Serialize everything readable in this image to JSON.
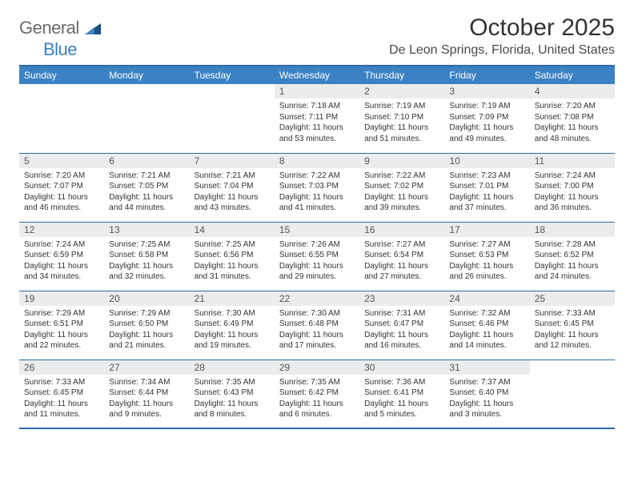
{
  "logo": {
    "text1": "General",
    "text2": "Blue"
  },
  "title": "October 2025",
  "location": "De Leon Springs, Florida, United States",
  "colors": {
    "header_bg": "#3b82c4",
    "border": "#2d6aa8",
    "daynum_bg": "#ececec",
    "logo_gray": "#6b6b6b",
    "logo_blue": "#3b7fc4"
  },
  "weekdays": [
    "Sunday",
    "Monday",
    "Tuesday",
    "Wednesday",
    "Thursday",
    "Friday",
    "Saturday"
  ],
  "weeks": [
    [
      {
        "n": "",
        "sr": "",
        "ss": "",
        "dl": ""
      },
      {
        "n": "",
        "sr": "",
        "ss": "",
        "dl": ""
      },
      {
        "n": "",
        "sr": "",
        "ss": "",
        "dl": ""
      },
      {
        "n": "1",
        "sr": "Sunrise: 7:18 AM",
        "ss": "Sunset: 7:11 PM",
        "dl": "Daylight: 11 hours and 53 minutes."
      },
      {
        "n": "2",
        "sr": "Sunrise: 7:19 AM",
        "ss": "Sunset: 7:10 PM",
        "dl": "Daylight: 11 hours and 51 minutes."
      },
      {
        "n": "3",
        "sr": "Sunrise: 7:19 AM",
        "ss": "Sunset: 7:09 PM",
        "dl": "Daylight: 11 hours and 49 minutes."
      },
      {
        "n": "4",
        "sr": "Sunrise: 7:20 AM",
        "ss": "Sunset: 7:08 PM",
        "dl": "Daylight: 11 hours and 48 minutes."
      }
    ],
    [
      {
        "n": "5",
        "sr": "Sunrise: 7:20 AM",
        "ss": "Sunset: 7:07 PM",
        "dl": "Daylight: 11 hours and 46 minutes."
      },
      {
        "n": "6",
        "sr": "Sunrise: 7:21 AM",
        "ss": "Sunset: 7:05 PM",
        "dl": "Daylight: 11 hours and 44 minutes."
      },
      {
        "n": "7",
        "sr": "Sunrise: 7:21 AM",
        "ss": "Sunset: 7:04 PM",
        "dl": "Daylight: 11 hours and 43 minutes."
      },
      {
        "n": "8",
        "sr": "Sunrise: 7:22 AM",
        "ss": "Sunset: 7:03 PM",
        "dl": "Daylight: 11 hours and 41 minutes."
      },
      {
        "n": "9",
        "sr": "Sunrise: 7:22 AM",
        "ss": "Sunset: 7:02 PM",
        "dl": "Daylight: 11 hours and 39 minutes."
      },
      {
        "n": "10",
        "sr": "Sunrise: 7:23 AM",
        "ss": "Sunset: 7:01 PM",
        "dl": "Daylight: 11 hours and 37 minutes."
      },
      {
        "n": "11",
        "sr": "Sunrise: 7:24 AM",
        "ss": "Sunset: 7:00 PM",
        "dl": "Daylight: 11 hours and 36 minutes."
      }
    ],
    [
      {
        "n": "12",
        "sr": "Sunrise: 7:24 AM",
        "ss": "Sunset: 6:59 PM",
        "dl": "Daylight: 11 hours and 34 minutes."
      },
      {
        "n": "13",
        "sr": "Sunrise: 7:25 AM",
        "ss": "Sunset: 6:58 PM",
        "dl": "Daylight: 11 hours and 32 minutes."
      },
      {
        "n": "14",
        "sr": "Sunrise: 7:25 AM",
        "ss": "Sunset: 6:56 PM",
        "dl": "Daylight: 11 hours and 31 minutes."
      },
      {
        "n": "15",
        "sr": "Sunrise: 7:26 AM",
        "ss": "Sunset: 6:55 PM",
        "dl": "Daylight: 11 hours and 29 minutes."
      },
      {
        "n": "16",
        "sr": "Sunrise: 7:27 AM",
        "ss": "Sunset: 6:54 PM",
        "dl": "Daylight: 11 hours and 27 minutes."
      },
      {
        "n": "17",
        "sr": "Sunrise: 7:27 AM",
        "ss": "Sunset: 6:53 PM",
        "dl": "Daylight: 11 hours and 26 minutes."
      },
      {
        "n": "18",
        "sr": "Sunrise: 7:28 AM",
        "ss": "Sunset: 6:52 PM",
        "dl": "Daylight: 11 hours and 24 minutes."
      }
    ],
    [
      {
        "n": "19",
        "sr": "Sunrise: 7:29 AM",
        "ss": "Sunset: 6:51 PM",
        "dl": "Daylight: 11 hours and 22 minutes."
      },
      {
        "n": "20",
        "sr": "Sunrise: 7:29 AM",
        "ss": "Sunset: 6:50 PM",
        "dl": "Daylight: 11 hours and 21 minutes."
      },
      {
        "n": "21",
        "sr": "Sunrise: 7:30 AM",
        "ss": "Sunset: 6:49 PM",
        "dl": "Daylight: 11 hours and 19 minutes."
      },
      {
        "n": "22",
        "sr": "Sunrise: 7:30 AM",
        "ss": "Sunset: 6:48 PM",
        "dl": "Daylight: 11 hours and 17 minutes."
      },
      {
        "n": "23",
        "sr": "Sunrise: 7:31 AM",
        "ss": "Sunset: 6:47 PM",
        "dl": "Daylight: 11 hours and 16 minutes."
      },
      {
        "n": "24",
        "sr": "Sunrise: 7:32 AM",
        "ss": "Sunset: 6:46 PM",
        "dl": "Daylight: 11 hours and 14 minutes."
      },
      {
        "n": "25",
        "sr": "Sunrise: 7:33 AM",
        "ss": "Sunset: 6:45 PM",
        "dl": "Daylight: 11 hours and 12 minutes."
      }
    ],
    [
      {
        "n": "26",
        "sr": "Sunrise: 7:33 AM",
        "ss": "Sunset: 6:45 PM",
        "dl": "Daylight: 11 hours and 11 minutes."
      },
      {
        "n": "27",
        "sr": "Sunrise: 7:34 AM",
        "ss": "Sunset: 6:44 PM",
        "dl": "Daylight: 11 hours and 9 minutes."
      },
      {
        "n": "28",
        "sr": "Sunrise: 7:35 AM",
        "ss": "Sunset: 6:43 PM",
        "dl": "Daylight: 11 hours and 8 minutes."
      },
      {
        "n": "29",
        "sr": "Sunrise: 7:35 AM",
        "ss": "Sunset: 6:42 PM",
        "dl": "Daylight: 11 hours and 6 minutes."
      },
      {
        "n": "30",
        "sr": "Sunrise: 7:36 AM",
        "ss": "Sunset: 6:41 PM",
        "dl": "Daylight: 11 hours and 5 minutes."
      },
      {
        "n": "31",
        "sr": "Sunrise: 7:37 AM",
        "ss": "Sunset: 6:40 PM",
        "dl": "Daylight: 11 hours and 3 minutes."
      },
      {
        "n": "",
        "sr": "",
        "ss": "",
        "dl": ""
      }
    ]
  ]
}
